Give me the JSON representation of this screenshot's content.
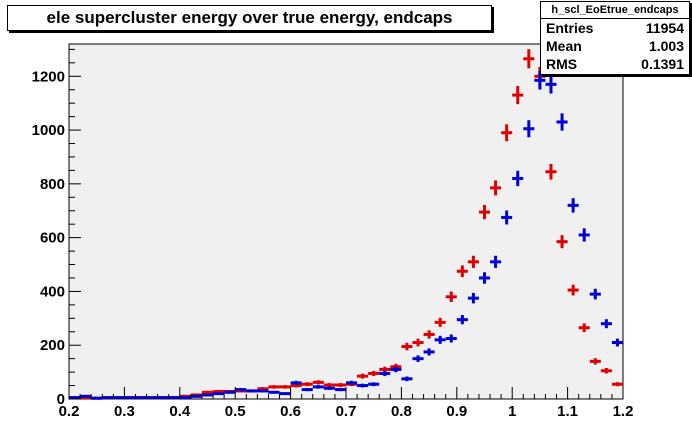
{
  "colors": {
    "frame_bg": "#f0f0f0",
    "series_red": "#e00000",
    "series_blue": "#0000d8"
  },
  "stats_box": {
    "name": "h_scl_EoEtrue_endcaps",
    "rows": [
      {
        "label": "Entries",
        "value": "11954"
      },
      {
        "label": "Mean",
        "value": "1.003"
      },
      {
        "label": "RMS",
        "value": "0.1391"
      }
    ]
  },
  "chart_data": {
    "type": "scatter",
    "title": "ele supercluster energy over true energy, endcaps",
    "xlabel": "",
    "ylabel": "",
    "xlim": [
      0.2,
      1.2
    ],
    "ylim": [
      0,
      1320
    ],
    "xticks": [
      "0.2",
      "0.3",
      "0.4",
      "0.5",
      "0.6",
      "0.7",
      "0.8",
      "0.9",
      "1",
      "1.1",
      "1.2"
    ],
    "yticks": [
      "0",
      "200",
      "400",
      "600",
      "800",
      "1000",
      "1200"
    ],
    "grid": false,
    "series": [
      {
        "color": "red",
        "bin_width": 0.02,
        "x": [
          0.21,
          0.23,
          0.25,
          0.27,
          0.29,
          0.31,
          0.33,
          0.35,
          0.37,
          0.39,
          0.41,
          0.43,
          0.45,
          0.47,
          0.49,
          0.51,
          0.53,
          0.55,
          0.57,
          0.59,
          0.61,
          0.63,
          0.65,
          0.67,
          0.69,
          0.71,
          0.73,
          0.75,
          0.77,
          0.79,
          0.81,
          0.83,
          0.85,
          0.87,
          0.89,
          0.91,
          0.93,
          0.95,
          0.97,
          0.99,
          1.01,
          1.03,
          1.05,
          1.07,
          1.09,
          1.11,
          1.13,
          1.15,
          1.17,
          1.19
        ],
        "y": [
          5,
          5,
          3,
          5,
          5,
          5,
          5,
          5,
          5,
          5,
          10,
          15,
          25,
          28,
          28,
          30,
          30,
          38,
          45,
          45,
          50,
          55,
          62,
          52,
          52,
          55,
          85,
          95,
          110,
          120,
          195,
          210,
          240,
          285,
          380,
          475,
          510,
          695,
          785,
          990,
          1130,
          1265,
          1200,
          845,
          585,
          405,
          265,
          140,
          105,
          55
        ]
      },
      {
        "color": "blue",
        "bin_width": 0.02,
        "x": [
          0.21,
          0.23,
          0.25,
          0.27,
          0.29,
          0.31,
          0.33,
          0.35,
          0.37,
          0.39,
          0.41,
          0.43,
          0.45,
          0.47,
          0.49,
          0.51,
          0.53,
          0.55,
          0.57,
          0.59,
          0.61,
          0.63,
          0.65,
          0.67,
          0.69,
          0.71,
          0.73,
          0.75,
          0.77,
          0.79,
          0.81,
          0.83,
          0.85,
          0.87,
          0.89,
          0.91,
          0.93,
          0.95,
          0.97,
          0.99,
          1.01,
          1.03,
          1.05,
          1.07,
          1.09,
          1.11,
          1.13,
          1.15,
          1.17,
          1.19
        ],
        "y": [
          5,
          10,
          3,
          5,
          5,
          5,
          5,
          5,
          5,
          5,
          5,
          10,
          15,
          20,
          25,
          35,
          30,
          30,
          25,
          20,
          60,
          35,
          45,
          40,
          35,
          60,
          50,
          55,
          95,
          110,
          75,
          150,
          175,
          220,
          225,
          295,
          375,
          450,
          510,
          675,
          820,
          1005,
          1185,
          1170,
          1030,
          720,
          610,
          390,
          280,
          210
        ]
      }
    ]
  }
}
